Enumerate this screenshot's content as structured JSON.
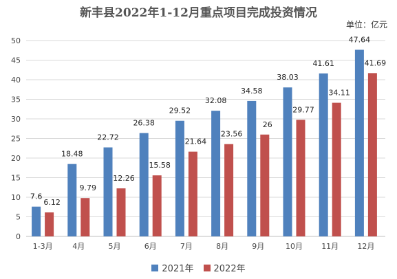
{
  "chart_data": {
    "type": "bar",
    "title": "新丰县2022年1-12月重点项目完成投资情况",
    "unit_label": "单位：亿元",
    "categories": [
      "1-3月",
      "4月",
      "5月",
      "6月",
      "7月",
      "8月",
      "9月",
      "10月",
      "11月",
      "12月"
    ],
    "series": [
      {
        "name": "2021年",
        "color": "#4f81bd",
        "values": [
          7.6,
          18.48,
          22.72,
          26.38,
          29.52,
          32.08,
          34.58,
          38.03,
          41.61,
          47.64
        ],
        "labels": [
          "7.6",
          "18.48",
          "22.72",
          "26.38",
          "29.52",
          "32.08",
          "34.58",
          "38.03",
          "41.61",
          "47.64"
        ]
      },
      {
        "name": "2022年",
        "color": "#c0504d",
        "values": [
          6.12,
          9.79,
          12.26,
          15.58,
          21.64,
          23.56,
          26,
          29.77,
          34.11,
          41.69
        ],
        "labels": [
          "6.12",
          "9.79",
          "12.26",
          "15.58",
          "21.64",
          "23.56",
          "26",
          "29.77",
          "34.11",
          "41.69"
        ]
      }
    ],
    "ylim": [
      0,
      50
    ],
    "yticks": [
      0,
      5,
      10,
      15,
      20,
      25,
      30,
      35,
      40,
      45,
      50
    ],
    "grid": true,
    "legend_position": "bottom"
  }
}
